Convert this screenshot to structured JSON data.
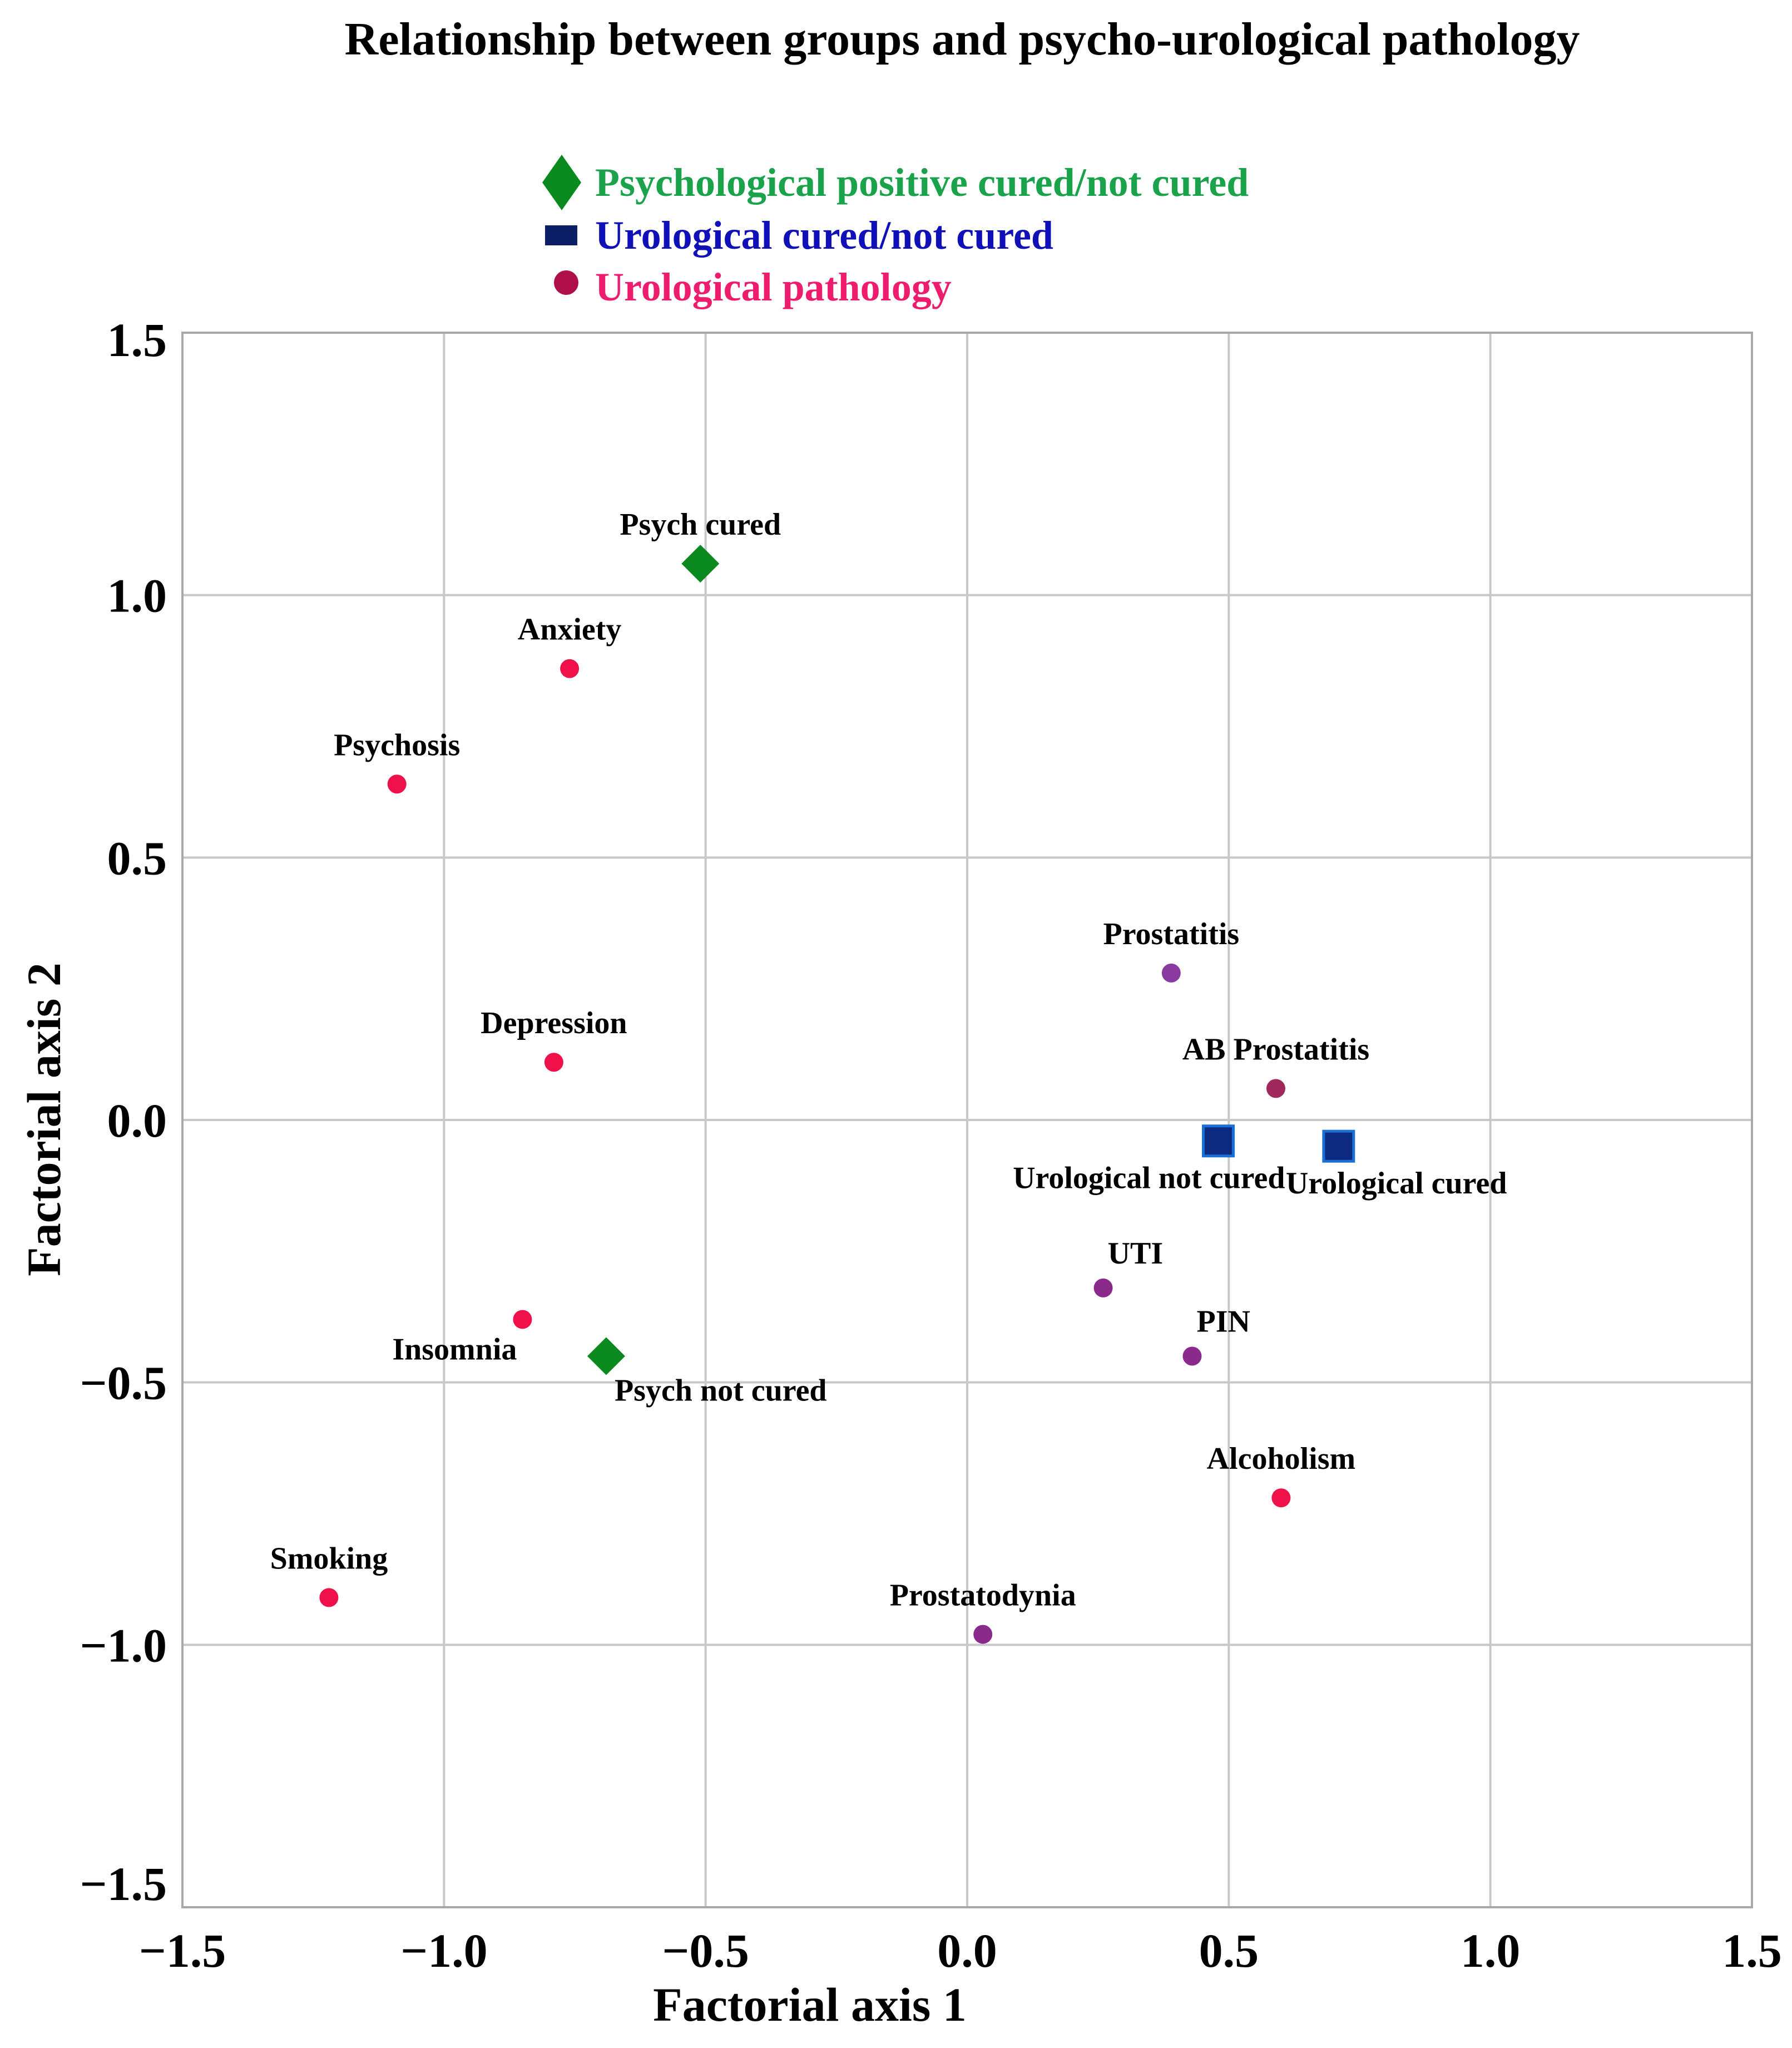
{
  "chart_data": {
    "type": "scatter",
    "title": "Relationship between groups and psycho-urological pathology",
    "xlabel": "Factorial axis 1",
    "ylabel": "Factorial axis 2",
    "xlim": [
      -1.5,
      1.5
    ],
    "ylim": [
      -1.5,
      1.5
    ],
    "grid": true,
    "x_ticks": [
      -1.5,
      -1.0,
      -0.5,
      0.0,
      0.5,
      1.0,
      1.5
    ],
    "y_ticks": [
      -1.5,
      -1.0,
      -0.5,
      0.0,
      0.5,
      1.0,
      1.5
    ],
    "x_tick_labels": [
      "−1.5",
      "−1.0",
      "−0.5",
      "0.0",
      "0.5",
      "1.0",
      "1.5"
    ],
    "y_tick_labels": [
      "−1.5",
      "−1.0",
      "−0.5",
      "0.0",
      "0.5",
      "1.0",
      "1.5"
    ],
    "legend": {
      "position": "top-center",
      "entries": [
        {
          "label": "Psychological positive cured/not cured",
          "marker": "diamond",
          "color": "#0a8a1e",
          "text_color": "#1aa34a"
        },
        {
          "label": "Urological cured/not cured",
          "marker": "square",
          "color": "#0b1f66",
          "text_color": "#1010b8"
        },
        {
          "label": "Urological pathology",
          "marker": "circle",
          "color": "#b0104a",
          "text_color": "#ee1c6c"
        }
      ]
    },
    "series": [
      {
        "name": "Psychological positive cured/not cured",
        "marker": "diamond",
        "color": "#0a8a1e",
        "points": [
          {
            "label": "Psych cured",
            "x": -0.51,
            "y": 1.06,
            "label_pos": "above"
          },
          {
            "label": "Psych not cured",
            "x": -0.69,
            "y": -0.45,
            "label_pos": "below-right"
          }
        ]
      },
      {
        "name": "Urological cured/not cured",
        "marker": "square",
        "color": "#0b2a80",
        "edge": "#1a6fd6",
        "points": [
          {
            "label": "Urological not cured",
            "x": 0.48,
            "y": -0.04,
            "label_pos": "below-left"
          },
          {
            "label": "Urological cured",
            "x": 0.71,
            "y": -0.05,
            "label_pos": "below-right"
          }
        ]
      },
      {
        "name": "Urological pathology",
        "marker": "circle",
        "points": [
          {
            "label": "Anxiety",
            "x": -0.76,
            "y": 0.86,
            "color": "#f0104a",
            "label_pos": "above"
          },
          {
            "label": "Psychosis",
            "x": -1.09,
            "y": 0.64,
            "color": "#f0104a",
            "label_pos": "above"
          },
          {
            "label": "Depression",
            "x": -0.79,
            "y": 0.11,
            "color": "#f0104a",
            "label_pos": "above"
          },
          {
            "label": "Insomnia",
            "x": -0.85,
            "y": -0.38,
            "color": "#f0104a",
            "label_pos": "below-left"
          },
          {
            "label": "Smoking",
            "x": -1.22,
            "y": -0.91,
            "color": "#f0104a",
            "label_pos": "above"
          },
          {
            "label": "Prostatitis",
            "x": 0.39,
            "y": 0.28,
            "color": "#8a3aa0",
            "label_pos": "above"
          },
          {
            "label": "AB Prostatitis",
            "x": 0.59,
            "y": 0.06,
            "color": "#a0285a",
            "label_pos": "above"
          },
          {
            "label": "UTI",
            "x": 0.26,
            "y": -0.32,
            "color": "#8a2a8a",
            "label_pos": "above-right"
          },
          {
            "label": "PIN",
            "x": 0.43,
            "y": -0.45,
            "color": "#8a2a8a",
            "label_pos": "above-right"
          },
          {
            "label": "Alcoholism",
            "x": 0.6,
            "y": -0.72,
            "color": "#f0104a",
            "label_pos": "above"
          },
          {
            "label": "Prostatodynia",
            "x": 0.03,
            "y": -0.98,
            "color": "#8a2a8a",
            "label_pos": "above"
          }
        ]
      }
    ]
  }
}
